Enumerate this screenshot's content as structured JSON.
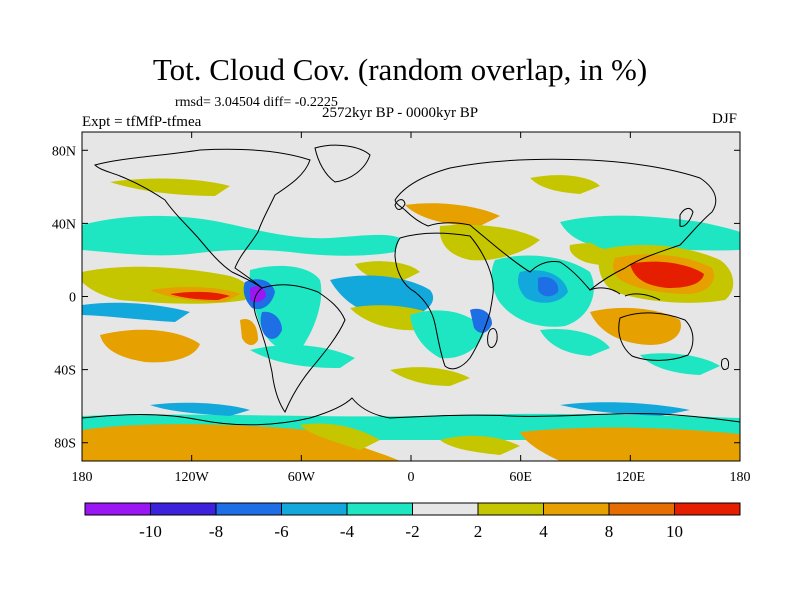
{
  "title": "Tot. Cloud Cov. (random overlap, in %)",
  "stats": "rmsd= 3.04504 diff= -0.2225",
  "subtitle": "2572kyr BP - 0000kyr BP",
  "expt": "Expt = tfMfP-tfmea",
  "season": "DJF",
  "map": {
    "lon_range": [
      -180,
      180
    ],
    "lat_range": [
      -90,
      90
    ],
    "background_color": "#e6e6e6",
    "lon_ticks": [
      {
        "value": -180,
        "label": "180"
      },
      {
        "value": -120,
        "label": "120W"
      },
      {
        "value": -60,
        "label": "60W"
      },
      {
        "value": 0,
        "label": "0"
      },
      {
        "value": 60,
        "label": "60E"
      },
      {
        "value": 120,
        "label": "120E"
      },
      {
        "value": 180,
        "label": "180"
      }
    ],
    "lat_ticks": [
      {
        "value": 80,
        "label": "80N"
      },
      {
        "value": 40,
        "label": "40N"
      },
      {
        "value": 0,
        "label": "0"
      },
      {
        "value": -40,
        "label": "40S"
      },
      {
        "value": -80,
        "label": "80S"
      }
    ]
  },
  "colorbar": {
    "colors": [
      "#9a16f2",
      "#3c22dc",
      "#1e6ee6",
      "#12a8dc",
      "#1ee6c2",
      "#e6e6e6",
      "#c6c600",
      "#e6a000",
      "#e66e00",
      "#e61e00"
    ],
    "labels": [
      {
        "boundary": 1,
        "text": "-10"
      },
      {
        "boundary": 2,
        "text": "-8"
      },
      {
        "boundary": 3,
        "text": "-6"
      },
      {
        "boundary": 4,
        "text": "-4"
      },
      {
        "boundary": 5,
        "text": "-2"
      },
      {
        "boundary": 6,
        "text": "2"
      },
      {
        "boundary": 7,
        "text": "4"
      },
      {
        "boundary": 8,
        "text": "8"
      },
      {
        "boundary": 9,
        "text": "10"
      }
    ]
  }
}
